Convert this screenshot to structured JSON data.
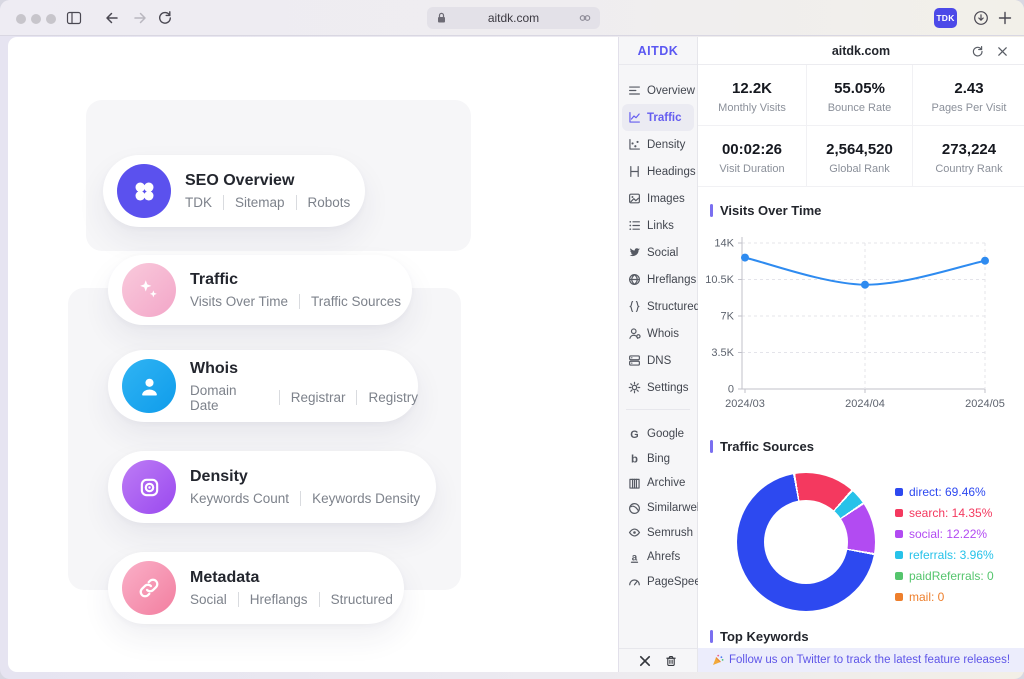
{
  "browser": {
    "url": "aitdk.com",
    "tdk_label": "TDK"
  },
  "page": {
    "cards": [
      {
        "title": "SEO Overview",
        "items": [
          "TDK",
          "Sitemap",
          "Robots"
        ]
      },
      {
        "title": "Traffic",
        "items": [
          "Visits Over Time",
          "Traffic Sources"
        ]
      },
      {
        "title": "Whois",
        "items": [
          "Domain Date",
          "Registrar",
          "Registry"
        ]
      },
      {
        "title": "Density",
        "items": [
          "Keywords Count",
          "Keywords Density"
        ]
      },
      {
        "title": "Metadata",
        "items": [
          "Social",
          "Hreflangs",
          "Structured"
        ]
      }
    ]
  },
  "panel": {
    "logo": "AITDK",
    "domain": "aitdk.com",
    "nav": [
      {
        "label": "Overview"
      },
      {
        "label": "Traffic",
        "active": true
      },
      {
        "label": "Density"
      },
      {
        "label": "Headings"
      },
      {
        "label": "Images"
      },
      {
        "label": "Links"
      },
      {
        "label": "Social"
      },
      {
        "label": "Hreflangs"
      },
      {
        "label": "Structured"
      },
      {
        "label": "Whois"
      },
      {
        "label": "DNS"
      },
      {
        "label": "Settings"
      }
    ],
    "tools": [
      {
        "label": "Google"
      },
      {
        "label": "Bing"
      },
      {
        "label": "Archive"
      },
      {
        "label": "Similarweb"
      },
      {
        "label": "Semrush"
      },
      {
        "label": "Ahrefs"
      },
      {
        "label": "PageSpeed"
      }
    ],
    "stats": [
      {
        "value": "12.2K",
        "label": "Monthly Visits"
      },
      {
        "value": "55.05%",
        "label": "Bounce Rate"
      },
      {
        "value": "2.43",
        "label": "Pages Per Visit"
      },
      {
        "value": "00:02:26",
        "label": "Visit Duration"
      },
      {
        "value": "2,564,520",
        "label": "Global Rank"
      },
      {
        "value": "273,224",
        "label": "Country Rank"
      }
    ],
    "sections": {
      "visits": "Visits Over Time",
      "sources": "Traffic Sources",
      "keywords": "Top Keywords"
    },
    "banner": {
      "emoji": "🎉",
      "text": "Follow us on Twitter to track the latest feature releases!"
    }
  },
  "chart_data": [
    {
      "type": "line",
      "title": "Visits Over Time",
      "x": [
        "2024/03",
        "2024/04",
        "2024/05"
      ],
      "series": [
        {
          "name": "visits",
          "values": [
            12600,
            10000,
            12300
          ]
        }
      ],
      "ylim": [
        0,
        14000
      ],
      "yticks": [
        {
          "v": 0,
          "label": "0"
        },
        {
          "v": 3500,
          "label": "3.5K"
        },
        {
          "v": 7000,
          "label": "7K"
        },
        {
          "v": 10500,
          "label": "10.5K"
        },
        {
          "v": 14000,
          "label": "14K"
        }
      ],
      "color": "#2e8bf0",
      "grid": "dashed",
      "legend_position": "none"
    },
    {
      "type": "pie",
      "title": "Traffic Sources",
      "donut": true,
      "start_angle": -9,
      "draw_order": [
        "search",
        "referrals",
        "social",
        "direct"
      ],
      "slices": [
        {
          "label": "direct",
          "value": 69.46,
          "display": "direct: 69.46%",
          "color": "#2d49f0"
        },
        {
          "label": "search",
          "value": 14.35,
          "display": "search: 14.35%",
          "color": "#f4395f"
        },
        {
          "label": "social",
          "value": 12.22,
          "display": "social: 12.22%",
          "color": "#b24bf2"
        },
        {
          "label": "referrals",
          "value": 3.96,
          "display": "referrals: 3.96%",
          "color": "#27c2e9"
        },
        {
          "label": "paidReferrals",
          "value": 0,
          "display": "paidReferrals: 0",
          "color": "#55c56d"
        },
        {
          "label": "mail",
          "value": 0,
          "display": "mail: 0",
          "color": "#ee7f2c"
        }
      ],
      "legend_position": "right"
    }
  ]
}
